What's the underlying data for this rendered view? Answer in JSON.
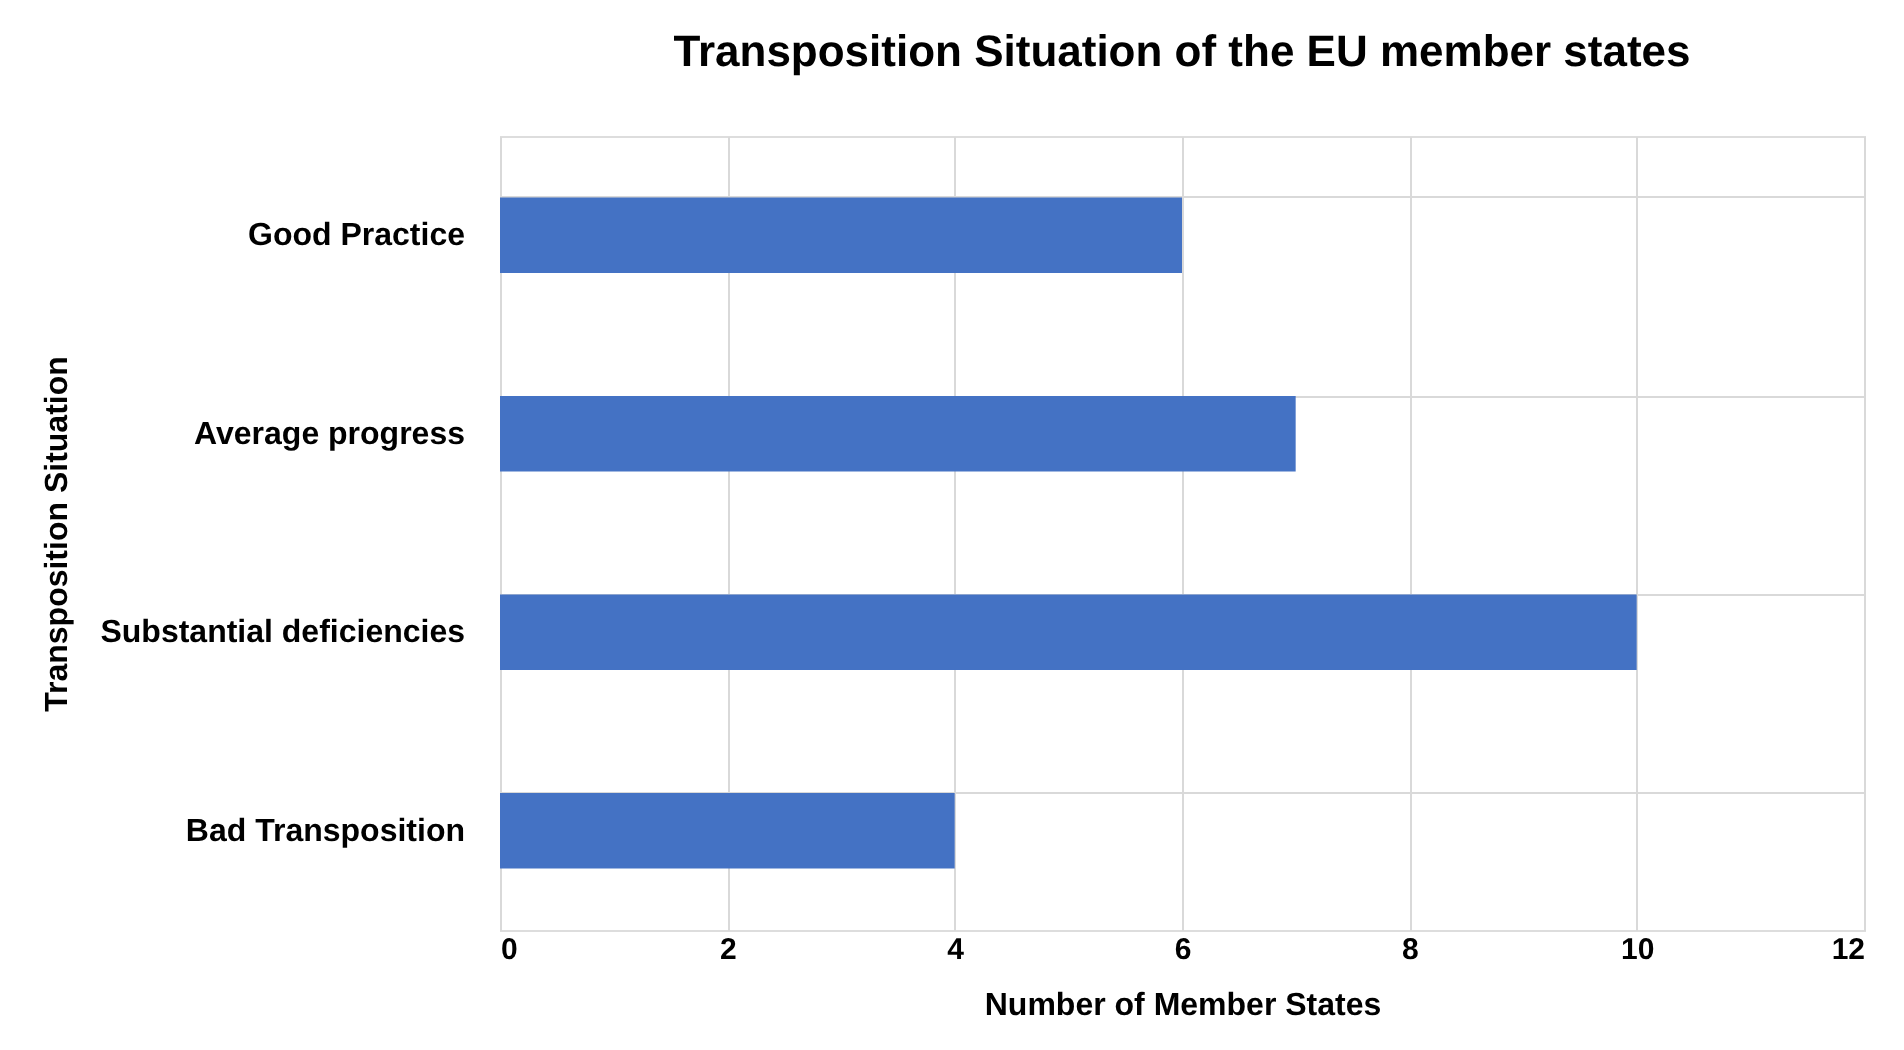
{
  "chart_data": {
    "type": "bar",
    "orientation": "horizontal",
    "title": "Transposition Situation of the EU member states",
    "xlabel": "Number of Member States",
    "ylabel": "Transposition Situation",
    "categories": [
      "Good Practice",
      "Average progress",
      "Substantial deficiencies",
      "Bad Transposition"
    ],
    "values": [
      6,
      7,
      10,
      4
    ],
    "color": "#4472c4",
    "xlim": [
      0,
      12
    ],
    "xticks": [
      0,
      2,
      4,
      6,
      8,
      10,
      12
    ],
    "grid": true
  }
}
